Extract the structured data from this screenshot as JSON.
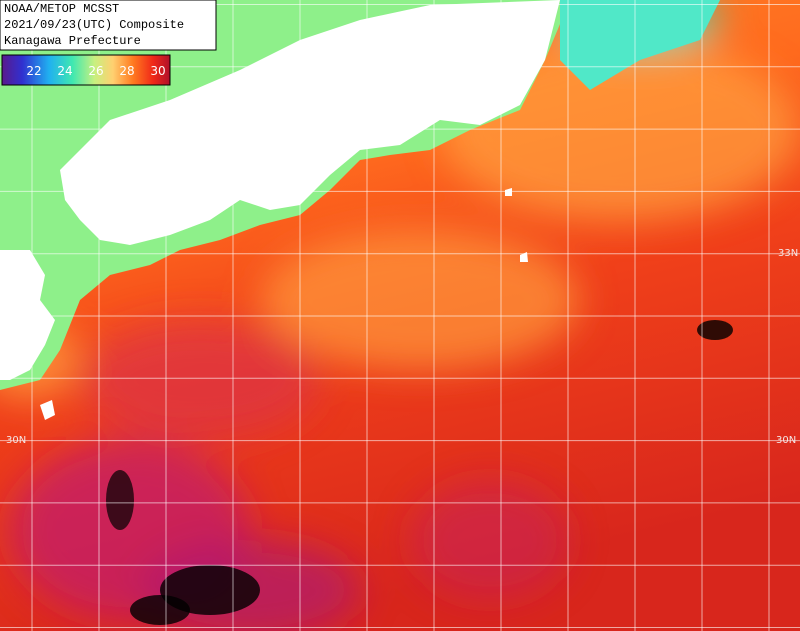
{
  "header": {
    "lines": [
      "NOAA/METOP MCSST",
      "2021/09/23(UTC) Composite",
      "Kanagawa Prefecture"
    ]
  },
  "legend": {
    "ticks": [
      "22",
      "24",
      "26",
      "28",
      "30"
    ]
  },
  "latitude_labels": {
    "lat33": "33N",
    "lat30": "30N"
  }
}
